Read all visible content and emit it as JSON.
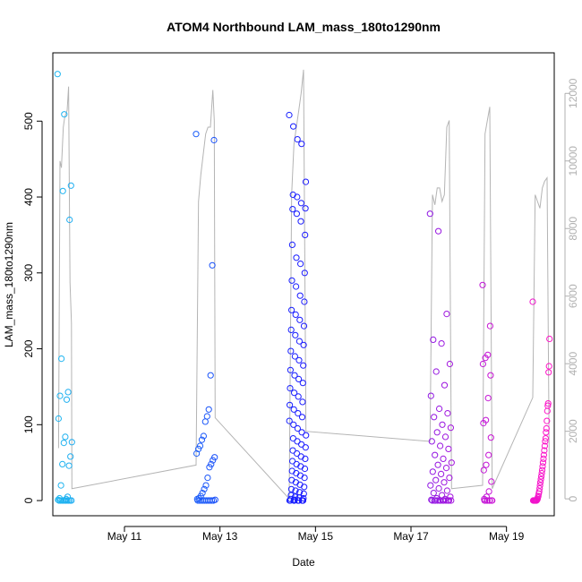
{
  "chart_data": {
    "type": "scatter",
    "title": "ATOM4 Northbound LAM_mass_180to1290nm",
    "xlabel": "Date",
    "ylabel": "LAM_mass_180to1290nm",
    "x_tick_labels": [
      "May 11",
      "May 13",
      "May 15",
      "May 17",
      "May 19"
    ],
    "x_tick_dates": [
      11,
      13,
      15,
      17,
      19
    ],
    "xlim": [
      9.5,
      20.0
    ],
    "ylim": [
      -20,
      590
    ],
    "y_ticks": [
      0,
      100,
      200,
      300,
      400,
      500
    ],
    "y2lim": [
      -500,
      13200
    ],
    "y2_ticks": [
      0,
      2000,
      4000,
      6000,
      8000,
      10000,
      12000
    ],
    "grid": false,
    "legend": "none",
    "colors": {
      "series_start": "#1fb6f0",
      "series_mid": "#1a1aff",
      "series_end": "#ff14c8",
      "secondary_line": "#b4b4b4",
      "secondary_axis": "#b0b0b0"
    },
    "flights": [
      {
        "start": 9.6,
        "end": 9.9,
        "points": [
          562,
          509,
          415,
          408,
          370,
          187,
          143,
          138,
          133,
          108,
          84,
          77,
          76,
          58,
          48,
          46,
          20,
          5,
          3,
          2,
          1,
          0,
          0,
          0,
          0,
          0,
          0,
          0,
          0,
          0,
          0
        ]
      },
      {
        "start": 12.5,
        "end": 12.9,
        "points": [
          483,
          475,
          310,
          165,
          120,
          111,
          104,
          85,
          80,
          72,
          68,
          62,
          57,
          53,
          48,
          44,
          30,
          20,
          15,
          10,
          6,
          3,
          2,
          1,
          0,
          0,
          0,
          0,
          0,
          0,
          0,
          0,
          0,
          0
        ]
      },
      {
        "start": 14.45,
        "end": 14.8,
        "points": [
          508,
          493,
          476,
          470,
          420,
          403,
          400,
          392,
          385,
          384,
          378,
          368,
          350,
          337,
          320,
          312,
          300,
          290,
          282,
          270,
          262,
          251,
          245,
          238,
          230,
          225,
          218,
          210,
          205,
          197,
          190,
          185,
          178,
          172,
          165,
          160,
          155,
          148,
          142,
          137,
          130,
          126,
          120,
          115,
          110,
          105,
          100,
          95,
          90,
          86,
          82,
          78,
          74,
          70,
          66,
          62,
          58,
          55,
          52,
          48,
          45,
          42,
          39,
          36,
          33,
          30,
          27,
          24,
          21,
          18,
          15,
          13,
          11,
          9,
          7,
          5,
          4,
          3,
          2,
          1,
          0,
          0,
          0,
          0,
          0,
          0,
          0,
          0,
          0,
          0,
          0,
          0,
          0,
          0
        ]
      },
      {
        "start": 17.4,
        "end": 17.85,
        "points": [
          378,
          355,
          246,
          212,
          207,
          180,
          170,
          152,
          138,
          121,
          115,
          110,
          100,
          96,
          90,
          84,
          78,
          72,
          68,
          60,
          55,
          50,
          47,
          43,
          38,
          35,
          30,
          27,
          24,
          20,
          16,
          13,
          10,
          7,
          5,
          3,
          2,
          1,
          0,
          0,
          0,
          0,
          0,
          0,
          0,
          0,
          0,
          0,
          0,
          0
        ]
      },
      {
        "start": 18.5,
        "end": 18.7,
        "points": [
          284,
          230,
          192,
          188,
          180,
          165,
          135,
          106,
          102,
          83,
          60,
          47,
          40,
          25,
          12,
          5,
          2,
          0,
          0,
          0,
          0,
          0,
          0,
          0,
          0
        ]
      },
      {
        "start": 19.55,
        "end": 19.9,
        "points": [
          262,
          213,
          177,
          169,
          128,
          125,
          118,
          105,
          95,
          90,
          82,
          78,
          72,
          66,
          60,
          55,
          50,
          45,
          40,
          36,
          32,
          28,
          24,
          20,
          16,
          12,
          9,
          6,
          4,
          2,
          1,
          0,
          0,
          0,
          0,
          0,
          0,
          0,
          0,
          0
        ]
      }
    ],
    "secondary_series": [
      {
        "x": 9.62,
        "y": 1500
      },
      {
        "x": 9.65,
        "y": 10000
      },
      {
        "x": 9.68,
        "y": 9800
      },
      {
        "x": 9.72,
        "y": 11000
      },
      {
        "x": 9.75,
        "y": 11300
      },
      {
        "x": 9.8,
        "y": 11500
      },
      {
        "x": 9.83,
        "y": 12200
      },
      {
        "x": 9.86,
        "y": 6400
      },
      {
        "x": 9.89,
        "y": 5200
      },
      {
        "x": 9.9,
        "y": 300
      },
      {
        "x": 12.5,
        "y": 1000
      },
      {
        "x": 12.55,
        "y": 8800
      },
      {
        "x": 12.6,
        "y": 9600
      },
      {
        "x": 12.65,
        "y": 10200
      },
      {
        "x": 12.7,
        "y": 10800
      },
      {
        "x": 12.75,
        "y": 11000
      },
      {
        "x": 12.8,
        "y": 11000
      },
      {
        "x": 12.85,
        "y": 12100
      },
      {
        "x": 12.88,
        "y": 11200
      },
      {
        "x": 12.9,
        "y": 2400
      },
      {
        "x": 14.45,
        "y": 0
      },
      {
        "x": 14.5,
        "y": 9000
      },
      {
        "x": 14.55,
        "y": 10500
      },
      {
        "x": 14.6,
        "y": 11000
      },
      {
        "x": 14.65,
        "y": 11500
      },
      {
        "x": 14.7,
        "y": 12000
      },
      {
        "x": 14.75,
        "y": 12700
      },
      {
        "x": 14.8,
        "y": 2000
      },
      {
        "x": 17.4,
        "y": 1700
      },
      {
        "x": 17.45,
        "y": 9000
      },
      {
        "x": 17.5,
        "y": 8700
      },
      {
        "x": 17.55,
        "y": 9200
      },
      {
        "x": 17.6,
        "y": 9200
      },
      {
        "x": 17.65,
        "y": 8800
      },
      {
        "x": 17.7,
        "y": 9000
      },
      {
        "x": 17.75,
        "y": 11000
      },
      {
        "x": 17.8,
        "y": 11200
      },
      {
        "x": 17.85,
        "y": 300
      },
      {
        "x": 18.5,
        "y": 400
      },
      {
        "x": 18.55,
        "y": 10800
      },
      {
        "x": 18.6,
        "y": 11200
      },
      {
        "x": 18.65,
        "y": 11600
      },
      {
        "x": 18.7,
        "y": 300
      },
      {
        "x": 19.55,
        "y": 3000
      },
      {
        "x": 19.6,
        "y": 9000
      },
      {
        "x": 19.65,
        "y": 8800
      },
      {
        "x": 19.7,
        "y": 8600
      },
      {
        "x": 19.75,
        "y": 9200
      },
      {
        "x": 19.8,
        "y": 9400
      },
      {
        "x": 19.85,
        "y": 9500
      },
      {
        "x": 19.9,
        "y": 0
      }
    ]
  }
}
